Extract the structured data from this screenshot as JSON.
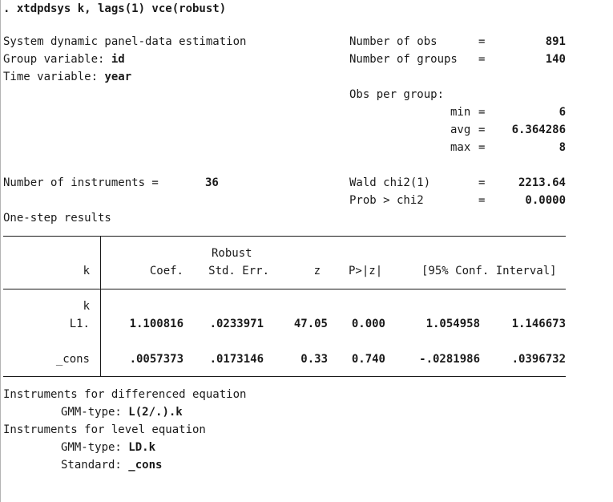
{
  "command": ". xtdpdsys k, lags(1) vce(robust)",
  "header": {
    "title": "System dynamic panel-data estimation",
    "group_label": "Group variable: ",
    "group_value": "id",
    "time_label": "Time variable: ",
    "time_value": "year",
    "nobs_label": "Number of obs",
    "nobs_value": "891",
    "ngroups_label": "Number of groups",
    "ngroups_value": "140",
    "obs_per_group_label": "Obs per group:",
    "min_label": "min",
    "min_value": "6",
    "avg_label": "avg",
    "avg_value": "6.364286",
    "max_label": "max",
    "max_value": "8",
    "ninstr_label": "Number of instruments =",
    "ninstr_value": "36",
    "wald_label": "Wald chi2(1)",
    "wald_value": "2213.64",
    "prob_label": "Prob > chi2",
    "prob_value": "0.0000",
    "equals": "=",
    "step_label": "One-step results"
  },
  "table": {
    "robust_label": "Robust",
    "col_var": "k",
    "col_coef": "Coef.",
    "col_se": "Std. Err.",
    "col_z": "z",
    "col_p": "P>|z|",
    "col_ci": "[95% Conf. Interval]",
    "group_label": "k",
    "rows": [
      {
        "name": "L1.",
        "coef": "1.100816",
        "se": ".0233971",
        "z": "47.05",
        "p": "0.000",
        "lo": "1.054958",
        "hi": "1.146673"
      },
      {
        "name": "_cons",
        "coef": ".0057373",
        "se": ".0173146",
        "z": "0.33",
        "p": "0.740",
        "lo": "-.0281986",
        "hi": ".0396732"
      }
    ]
  },
  "instruments": {
    "diff_title": "Instruments for differenced equation",
    "diff_gmm_label": "GMM-type: ",
    "diff_gmm_value": "L(2/.).k",
    "level_title": "Instruments for level equation",
    "level_gmm_label": "GMM-type: ",
    "level_gmm_value": "LD.k",
    "standard_label": "Standard: ",
    "standard_value": "_cons"
  }
}
